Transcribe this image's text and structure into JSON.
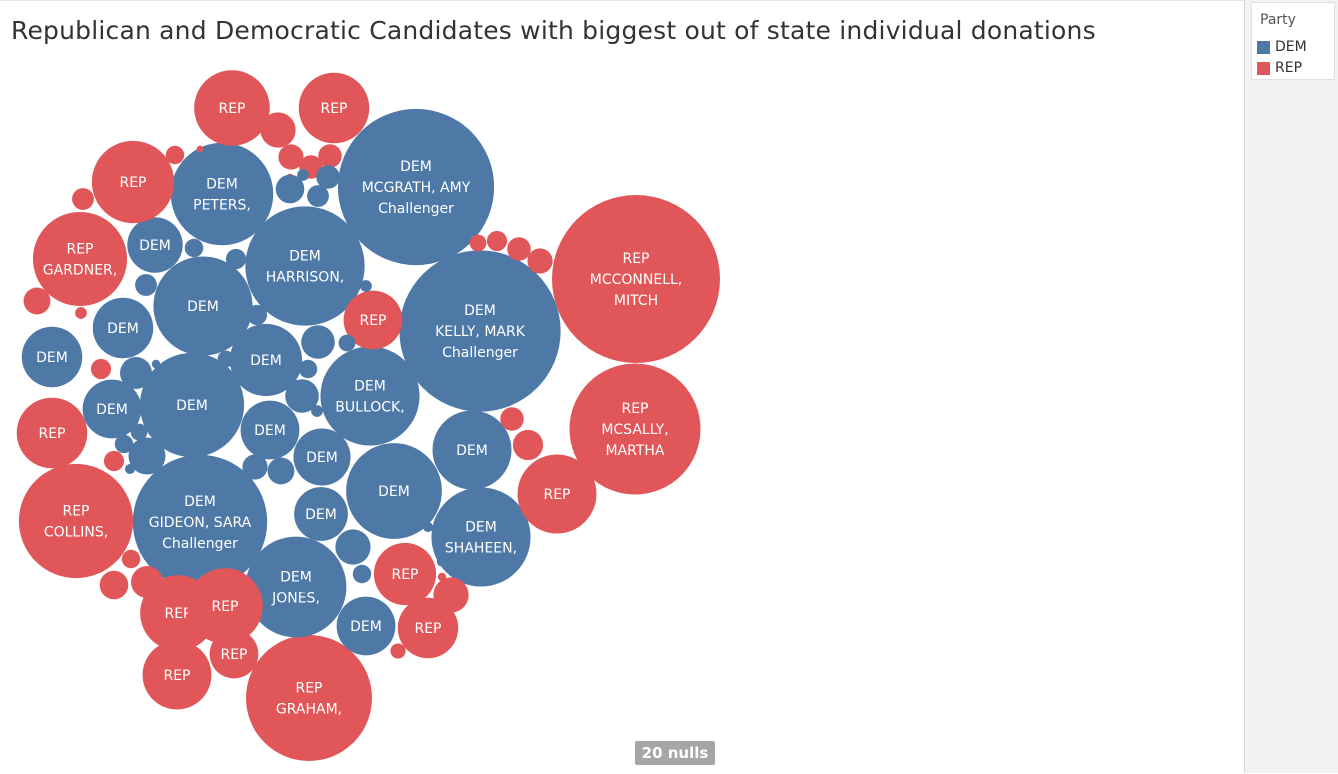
{
  "title": "Republican and Democratic Candidates with biggest out of state individual donations",
  "legend": {
    "title": "Party",
    "items": [
      {
        "label": "DEM",
        "color": "#4e79a7"
      },
      {
        "label": "REP",
        "color": "#e15759"
      }
    ]
  },
  "nulls_badge": "20 nulls",
  "chart_data": {
    "type": "packed-bubble",
    "color_by": "Party",
    "colors": {
      "DEM": "#4e79a7",
      "REP": "#e15759"
    },
    "labeled_bubbles": [
      {
        "party": "REP",
        "candidate": "MCCONNELL, MITCH",
        "status": "",
        "relative_size": 1.0
      },
      {
        "party": "DEM",
        "candidate": "KELLY, MARK",
        "status": "Challenger",
        "relative_size": 0.96
      },
      {
        "party": "DEM",
        "candidate": "MCGRATH, AMY",
        "status": "Challenger",
        "relative_size": 0.93
      },
      {
        "party": "REP",
        "candidate": "MCSALLY, MARTHA",
        "status": "",
        "relative_size": 0.78
      },
      {
        "party": "DEM",
        "candidate": "GIDEON, SARA",
        "status": "Challenger",
        "relative_size": 0.8
      },
      {
        "party": "REP",
        "candidate": "GRAHAM,",
        "status": "",
        "relative_size": 0.75
      },
      {
        "party": "DEM",
        "candidate": "HARRISON,",
        "status": "",
        "relative_size": 0.71
      },
      {
        "party": "REP",
        "candidate": "COLLINS,",
        "status": "",
        "relative_size": 0.68
      },
      {
        "party": "DEM",
        "candidate": "PETERS,",
        "status": "",
        "relative_size": 0.61
      },
      {
        "party": "DEM",
        "candidate": "JONES,",
        "status": "",
        "relative_size": 0.6
      },
      {
        "party": "DEM",
        "candidate": "SHAHEEN,",
        "status": "",
        "relative_size": 0.59
      },
      {
        "party": "DEM",
        "candidate": "BULLOCK,",
        "status": "",
        "relative_size": 0.59
      },
      {
        "party": "REP",
        "candidate": "GARDNER,",
        "status": "",
        "relative_size": 0.56
      },
      {
        "party": "DEM",
        "candidate": "",
        "status": "",
        "relative_size": 0.62
      },
      {
        "party": "DEM",
        "candidate": "",
        "status": "",
        "relative_size": 0.59
      },
      {
        "party": "DEM",
        "candidate": "",
        "status": "",
        "relative_size": 0.57
      },
      {
        "party": "DEM",
        "candidate": "",
        "status": "",
        "relative_size": 0.47
      },
      {
        "party": "DEM",
        "candidate": "",
        "status": "",
        "relative_size": 0.43
      },
      {
        "party": "DEM",
        "candidate": "",
        "status": "",
        "relative_size": 0.36
      },
      {
        "party": "DEM",
        "candidate": "",
        "status": "",
        "relative_size": 0.36
      },
      {
        "party": "DEM",
        "candidate": "",
        "status": "",
        "relative_size": 0.35
      },
      {
        "party": "DEM",
        "candidate": "",
        "status": "",
        "relative_size": 0.35
      },
      {
        "party": "DEM",
        "candidate": "",
        "status": "",
        "relative_size": 0.35
      },
      {
        "party": "DEM",
        "candidate": "",
        "status": "",
        "relative_size": 0.34
      },
      {
        "party": "DEM",
        "candidate": "",
        "status": "",
        "relative_size": 0.33
      },
      {
        "party": "DEM",
        "candidate": "",
        "status": "",
        "relative_size": 0.32
      },
      {
        "party": "REP",
        "candidate": "",
        "status": "",
        "relative_size": 0.49
      },
      {
        "party": "REP",
        "candidate": "",
        "status": "",
        "relative_size": 0.47
      },
      {
        "party": "REP",
        "candidate": "",
        "status": "",
        "relative_size": 0.45
      },
      {
        "party": "REP",
        "candidate": "",
        "status": "",
        "relative_size": 0.45
      },
      {
        "party": "REP",
        "candidate": "",
        "status": "",
        "relative_size": 0.45
      },
      {
        "party": "REP",
        "candidate": "",
        "status": "",
        "relative_size": 0.42
      },
      {
        "party": "REP",
        "candidate": "",
        "status": "",
        "relative_size": 0.42
      },
      {
        "party": "REP",
        "candidate": "",
        "status": "",
        "relative_size": 0.41
      },
      {
        "party": "REP",
        "candidate": "",
        "status": "",
        "relative_size": 0.37
      },
      {
        "party": "REP",
        "candidate": "",
        "status": "",
        "relative_size": 0.36
      },
      {
        "party": "REP",
        "candidate": "",
        "status": "",
        "relative_size": 0.35
      },
      {
        "party": "REP",
        "candidate": "",
        "status": "",
        "relative_size": 0.29
      }
    ],
    "unlabeled_small_bubbles": [
      {
        "party": "REP",
        "relative_size": 0.21
      },
      {
        "party": "REP",
        "relative_size": 0.21
      },
      {
        "party": "REP",
        "relative_size": 0.19
      },
      {
        "party": "REP",
        "relative_size": 0.18
      },
      {
        "party": "REP",
        "relative_size": 0.17
      },
      {
        "party": "REP",
        "relative_size": 0.16
      },
      {
        "party": "REP",
        "relative_size": 0.15
      },
      {
        "party": "REP",
        "relative_size": 0.15
      },
      {
        "party": "REP",
        "relative_size": 0.14
      },
      {
        "party": "REP",
        "relative_size": 0.14
      },
      {
        "party": "REP",
        "relative_size": 0.14
      },
      {
        "party": "REP",
        "relative_size": 0.14
      },
      {
        "party": "REP",
        "relative_size": 0.13
      },
      {
        "party": "REP",
        "relative_size": 0.12
      },
      {
        "party": "REP",
        "relative_size": 0.12
      },
      {
        "party": "REP",
        "relative_size": 0.12
      },
      {
        "party": "REP",
        "relative_size": 0.11
      },
      {
        "party": "REP",
        "relative_size": 0.11
      },
      {
        "party": "REP",
        "relative_size": 0.1
      },
      {
        "party": "REP",
        "relative_size": 0.09
      },
      {
        "party": "REP",
        "relative_size": 0.08
      },
      {
        "party": "REP",
        "relative_size": 0.07
      },
      {
        "party": "REP",
        "relative_size": 0.06
      },
      {
        "party": "REP",
        "relative_size": 0.05
      },
      {
        "party": "REP",
        "relative_size": 0.05
      },
      {
        "party": "REP",
        "relative_size": 0.04
      },
      {
        "party": "DEM",
        "relative_size": 0.22
      },
      {
        "party": "DEM",
        "relative_size": 0.21
      },
      {
        "party": "DEM",
        "relative_size": 0.2
      },
      {
        "party": "DEM",
        "relative_size": 0.2
      },
      {
        "party": "DEM",
        "relative_size": 0.19
      },
      {
        "party": "DEM",
        "relative_size": 0.17
      },
      {
        "party": "DEM",
        "relative_size": 0.16
      },
      {
        "party": "DEM",
        "relative_size": 0.15
      },
      {
        "party": "DEM",
        "relative_size": 0.14
      },
      {
        "party": "DEM",
        "relative_size": 0.13
      },
      {
        "party": "DEM",
        "relative_size": 0.13
      },
      {
        "party": "DEM",
        "relative_size": 0.12
      },
      {
        "party": "DEM",
        "relative_size": 0.12
      },
      {
        "party": "DEM",
        "relative_size": 0.11
      },
      {
        "party": "DEM",
        "relative_size": 0.11
      },
      {
        "party": "DEM",
        "relative_size": 0.11
      },
      {
        "party": "DEM",
        "relative_size": 0.11
      },
      {
        "party": "DEM",
        "relative_size": 0.1
      },
      {
        "party": "DEM",
        "relative_size": 0.1
      },
      {
        "party": "DEM",
        "relative_size": 0.1
      },
      {
        "party": "DEM",
        "relative_size": 0.1
      },
      {
        "party": "DEM",
        "relative_size": 0.08
      },
      {
        "party": "DEM",
        "relative_size": 0.08
      },
      {
        "party": "DEM",
        "relative_size": 0.07
      },
      {
        "party": "DEM",
        "relative_size": 0.07
      },
      {
        "party": "DEM",
        "relative_size": 0.07
      },
      {
        "party": "DEM",
        "relative_size": 0.06
      },
      {
        "party": "DEM",
        "relative_size": 0.06
      },
      {
        "party": "DEM",
        "relative_size": 0.05
      },
      {
        "party": "DEM",
        "relative_size": 0.05
      },
      {
        "party": "DEM",
        "relative_size": 0.05
      },
      {
        "party": "DEM",
        "relative_size": 0.05
      },
      {
        "party": "DEM",
        "relative_size": 0.04
      },
      {
        "party": "DEM",
        "relative_size": 0.04
      }
    ]
  }
}
